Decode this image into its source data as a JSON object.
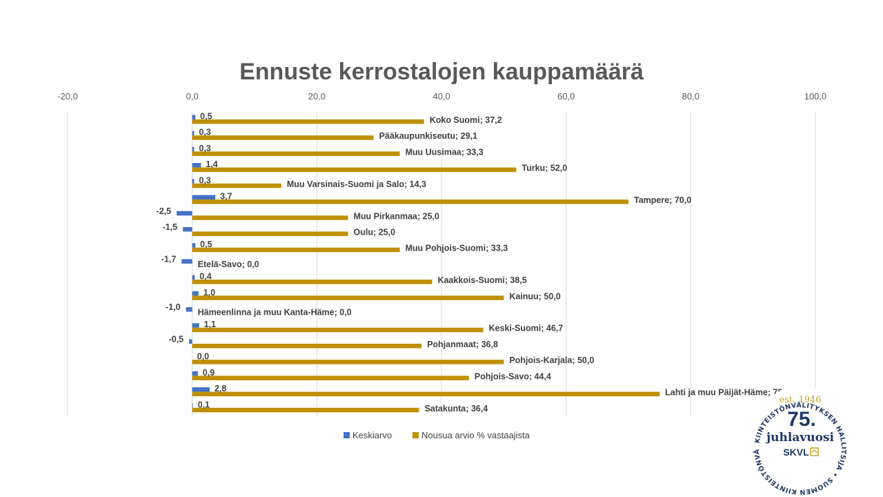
{
  "chart_data": {
    "type": "bar",
    "orientation": "horizontal",
    "title": "Ennuste kerrostalojen kauppamäärä",
    "xlim": [
      -20,
      100
    ],
    "x_ticks": [
      "-20,0",
      "0,0",
      "20,0",
      "40,0",
      "60,0",
      "80,0",
      "100,0"
    ],
    "x_tick_values": [
      -20,
      0,
      20,
      40,
      60,
      80,
      100
    ],
    "grid": true,
    "legend_position": "bottom",
    "categories": [
      "Koko Suomi",
      "Pääkaupunkiseutu",
      "Muu Uusimaa",
      "Turku",
      "Muu Varsinais-Suomi ja Salo",
      "Tampere",
      "Muu Pirkanmaa",
      "Oulu",
      "Muu Pohjois-Suomi",
      "Etelä-Savo",
      "Kaakkois-Suomi",
      "Kainuu",
      "Hämeenlinna ja muu Kanta-Häme",
      "Keski-Suomi",
      "Pohjanmaat",
      "Pohjois-Karjala",
      "Pohjois-Savo",
      "Lahti ja muu Päijät-Häme",
      "Satakunta"
    ],
    "series": [
      {
        "name": "Keskiarvo",
        "color": "#4472c4",
        "values": [
          0.5,
          0.3,
          0.3,
          1.4,
          0.3,
          3.7,
          -2.5,
          -1.5,
          0.5,
          -1.7,
          0.4,
          1.0,
          -1.0,
          1.1,
          -0.5,
          0.0,
          0.9,
          2.8,
          0.1
        ],
        "labels": [
          "0,5",
          "0,3",
          "0,3",
          "1,4",
          "0,3",
          "3,7",
          "-2,5",
          "-1,5",
          "0,5",
          "-1,7",
          "0,4",
          "1,0",
          "-1,0",
          "1,1",
          "-0,5",
          "0,0",
          "0,9",
          "2,8",
          "0,1"
        ]
      },
      {
        "name": "Nousua arvio % vastaajista",
        "color": "#bf9000",
        "values": [
          37.2,
          29.1,
          33.3,
          52.0,
          14.3,
          70.0,
          25.0,
          25.0,
          33.3,
          0.0,
          38.5,
          50.0,
          0.0,
          46.7,
          36.8,
          50.0,
          44.4,
          75.0,
          36.4
        ],
        "labels": [
          "Koko Suomi; 37,2",
          "Pääkaupunkiseutu; 29,1",
          "Muu Uusimaa; 33,3",
          "Turku; 52,0",
          "Muu Varsinais-Suomi ja Salo; 14,3",
          "Tampere; 70,0",
          "Muu Pirkanmaa; 25,0",
          "Oulu; 25,0",
          "Muu Pohjois-Suomi; 33,3",
          "Etelä-Savo; 0,0",
          "Kaakkois-Suomi; 38,5",
          "Kainuu; 50,0",
          "Hämeenlinna ja muu Kanta-Häme; 0,0",
          "Keski-Suomi; 46,7",
          "Pohjanmaat; 36,8",
          "Pohjois-Karjala; 50,0",
          "Pohjois-Savo; 44,4",
          "Lahti ja muu Päijät-Häme; 75,0",
          "Satakunta; 36,4"
        ]
      }
    ]
  },
  "seal": {
    "ring_text": "KIINTEISTÖNVÄLITYKSEN HALLITSIJA • SUOMEN KIINTEISTÖNVÄLITTÄJÄT RY •",
    "est": "est. 1946",
    "number": "75.",
    "word": "juhlavuosi",
    "brand": "SKVL",
    "colors": {
      "navy": "#1f3864",
      "gold": "#c9a227"
    }
  }
}
